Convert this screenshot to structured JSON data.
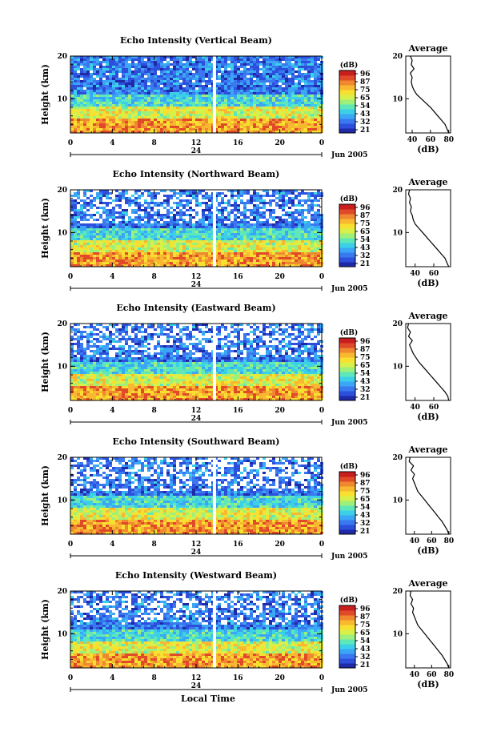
{
  "figure": {
    "xlabel": "Local Time",
    "date_label": "Jun 2005",
    "day_label": "24",
    "colorbar_unit": "(dB)",
    "colorbar_ticks": [
      "96",
      "87",
      "75",
      "65",
      "54",
      "43",
      "32",
      "21"
    ],
    "colormap": [
      "#1e2aa8",
      "#2c4fdc",
      "#3a78f0",
      "#3aa6f5",
      "#3cd0e8",
      "#5ee7b8",
      "#9ef07a",
      "#d8f04a",
      "#f8e030",
      "#f8b830",
      "#f08830",
      "#e04a28",
      "#c81e1e"
    ]
  },
  "chart_data": [
    {
      "type": "heatmap",
      "title": "Echo Intensity (Vertical Beam)",
      "ylabel": "Height (km)",
      "x_ticks": [
        "0",
        "4",
        "8",
        "12",
        "16",
        "20",
        "0"
      ],
      "y_ticks": [
        "20",
        "10"
      ],
      "xlim": [
        0,
        24
      ],
      "ylim": [
        2,
        20
      ],
      "gap_hour": 13.6,
      "profile": {
        "title": "Average",
        "xlabel": "(dB)",
        "x_ticks": [
          "40",
          "60",
          "80"
        ],
        "y_ticks": [
          "20",
          "10"
        ],
        "xlim": [
          33,
          82
        ],
        "heights": [
          2,
          3,
          4,
          5,
          6,
          7,
          8,
          9,
          10,
          11,
          12,
          13,
          14,
          15,
          16,
          17,
          18,
          19,
          20
        ],
        "values": [
          80,
          78,
          76,
          72,
          68,
          64,
          60,
          55,
          50,
          45,
          42,
          40,
          39,
          40,
          38,
          42,
          39,
          40,
          38
        ]
      }
    },
    {
      "type": "heatmap",
      "title": "Echo Intensity (Northward Beam)",
      "ylabel": "Height (km)",
      "x_ticks": [
        "0",
        "4",
        "8",
        "12",
        "16",
        "20",
        "0"
      ],
      "y_ticks": [
        "20",
        "10"
      ],
      "xlim": [
        0,
        24
      ],
      "ylim": [
        2,
        20
      ],
      "gap_hour": 13.6,
      "profile": {
        "title": "Average",
        "xlabel": "(dB)",
        "x_ticks": [
          "40",
          "60"
        ],
        "y_ticks": [
          "20",
          "10"
        ],
        "xlim": [
          30,
          78
        ],
        "heights": [
          2,
          3,
          4,
          5,
          6,
          7,
          8,
          9,
          10,
          11,
          12,
          13,
          14,
          15,
          16,
          17,
          18,
          19,
          20
        ],
        "values": [
          76,
          74,
          72,
          68,
          64,
          60,
          56,
          52,
          48,
          44,
          40,
          38,
          37,
          35,
          36,
          34,
          35,
          33,
          34
        ]
      }
    },
    {
      "type": "heatmap",
      "title": "Echo Intensity (Eastward Beam)",
      "ylabel": "Height (km)",
      "x_ticks": [
        "0",
        "4",
        "8",
        "12",
        "16",
        "20",
        "0"
      ],
      "y_ticks": [
        "20",
        "10"
      ],
      "xlim": [
        0,
        24
      ],
      "ylim": [
        2,
        20
      ],
      "gap_hour": 13.6,
      "profile": {
        "title": "Average",
        "xlabel": "(dB)",
        "x_ticks": [
          "40",
          "60"
        ],
        "y_ticks": [
          "20",
          "10"
        ],
        "xlim": [
          30,
          78
        ],
        "heights": [
          2,
          3,
          4,
          5,
          6,
          7,
          8,
          9,
          10,
          11,
          12,
          13,
          14,
          15,
          16,
          17,
          18,
          19,
          20
        ],
        "values": [
          76,
          75,
          72,
          68,
          64,
          60,
          56,
          52,
          48,
          44,
          41,
          38,
          36,
          34,
          37,
          33,
          35,
          32,
          33
        ]
      }
    },
    {
      "type": "heatmap",
      "title": "Echo Intensity (Southward Beam)",
      "ylabel": "Height (km)",
      "x_ticks": [
        "0",
        "4",
        "8",
        "12",
        "16",
        "20",
        "0"
      ],
      "y_ticks": [
        "20",
        "10"
      ],
      "xlim": [
        0,
        24
      ],
      "ylim": [
        2,
        20
      ],
      "gap_hour": 13.6,
      "profile": {
        "title": "Average",
        "xlabel": "(dB)",
        "x_ticks": [
          "40",
          "60",
          "80"
        ],
        "y_ticks": [
          "20",
          "10"
        ],
        "xlim": [
          30,
          82
        ],
        "heights": [
          2,
          3,
          4,
          5,
          6,
          7,
          8,
          9,
          10,
          11,
          12,
          13,
          14,
          15,
          16,
          17,
          18,
          19,
          20
        ],
        "values": [
          80,
          78,
          75,
          72,
          68,
          64,
          60,
          56,
          52,
          48,
          44,
          42,
          40,
          38,
          40,
          36,
          39,
          34,
          35
        ]
      }
    },
    {
      "type": "heatmap",
      "title": "Echo Intensity (Westward Beam)",
      "ylabel": "Height (km)",
      "x_ticks": [
        "0",
        "4",
        "8",
        "12",
        "16",
        "20",
        "0"
      ],
      "y_ticks": [
        "20",
        "10"
      ],
      "xlim": [
        0,
        24
      ],
      "ylim": [
        2,
        20
      ],
      "gap_hour": 13.6,
      "profile": {
        "title": "Average",
        "xlabel": "(dB)",
        "x_ticks": [
          "40",
          "60",
          "80"
        ],
        "y_ticks": [
          "20",
          "10"
        ],
        "xlim": [
          30,
          82
        ],
        "heights": [
          2,
          3,
          4,
          5,
          6,
          7,
          8,
          9,
          10,
          11,
          12,
          13,
          14,
          15,
          16,
          17,
          18,
          19,
          20
        ],
        "values": [
          80,
          78,
          75,
          72,
          68,
          64,
          60,
          56,
          52,
          48,
          44,
          42,
          40,
          38,
          39,
          36,
          38,
          35,
          36
        ]
      }
    }
  ]
}
